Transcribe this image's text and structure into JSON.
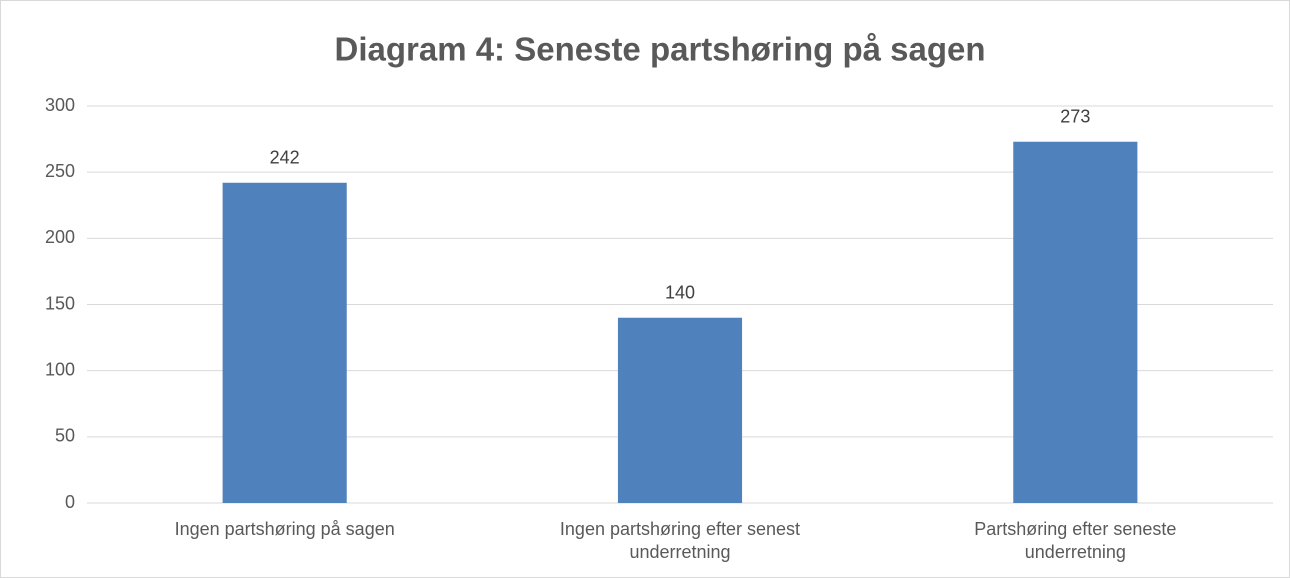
{
  "chart_data": {
    "type": "bar",
    "title": "Diagram 4: Seneste partshøring på sagen",
    "categories": [
      "Ingen partshøring på sagen",
      "Ingen partshøring efter senest underretning",
      "Partshøring efter seneste underretning"
    ],
    "values": [
      242,
      140,
      273
    ],
    "color": "#4f81bd",
    "ylim": [
      0,
      300
    ],
    "yticks": [
      0,
      50,
      100,
      150,
      200,
      250,
      300
    ],
    "grid": true
  }
}
